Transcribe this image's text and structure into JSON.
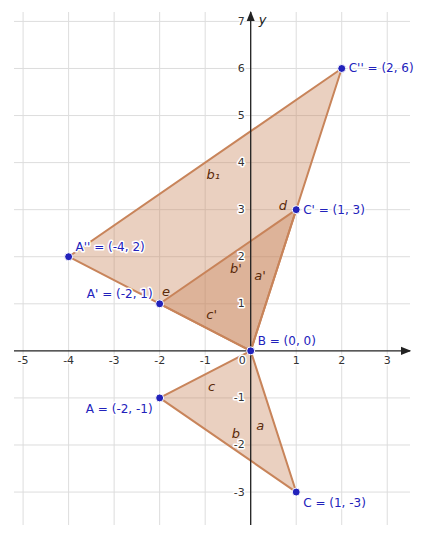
{
  "chart_data": {
    "type": "polygon",
    "xlim": [
      -5.2,
      3.5
    ],
    "ylim": [
      -3.7,
      7.2
    ],
    "xticks": [
      -5,
      -4,
      -3,
      -2,
      -1,
      0,
      1,
      2,
      3
    ],
    "yticks": [
      -3,
      -2,
      -1,
      1,
      2,
      3,
      4,
      5,
      6,
      7
    ],
    "grid": true,
    "y_label": "y",
    "series": [
      {
        "type": "polygon",
        "color": "#c8845a",
        "x": [
          -2,
          0,
          1
        ],
        "values": [
          -1,
          0,
          -3
        ],
        "edge_labels": [
          "c",
          "a",
          "b"
        ]
      },
      {
        "type": "polygon",
        "color": "#c8845a",
        "x": [
          -2,
          0,
          1
        ],
        "values": [
          1,
          0,
          3
        ],
        "edge_labels": [
          "c'",
          "a'",
          "b'"
        ]
      },
      {
        "type": "polygon",
        "color": "#c8845a",
        "x": [
          -4,
          0,
          2
        ],
        "values": [
          2,
          0,
          6
        ],
        "edge_labels": [
          "e",
          "d",
          "b₁"
        ]
      },
      {
        "type": "scatter",
        "color": "#2222bb",
        "x": [
          -2,
          0,
          1,
          -2,
          1,
          -4,
          2
        ],
        "values": [
          -1,
          0,
          -3,
          1,
          3,
          2,
          6
        ],
        "data_labels": true,
        "value_labels": [
          "A = (-2, -1)",
          "B = (0, 0)",
          "C = (1, -3)",
          "A' = (-2, 1)",
          "C' = (1, 3)",
          "A'' = (-4, 2)",
          "C'' = (2, 6)"
        ]
      }
    ]
  }
}
